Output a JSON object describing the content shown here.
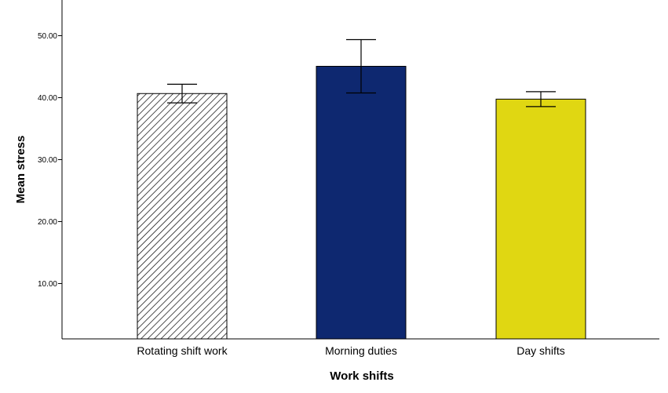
{
  "chart_data": {
    "type": "bar",
    "title": "",
    "xlabel": "Work shifts",
    "ylabel": "Mean stress",
    "categories": [
      "Rotating shift work",
      "Morning duties",
      "Day shifts"
    ],
    "values": [
      40.6,
      45.0,
      39.7
    ],
    "error_low": [
      39.1,
      40.7,
      38.5
    ],
    "error_high": [
      42.1,
      49.3,
      40.9
    ],
    "bar_styles": [
      "hatched",
      "solid",
      "solid"
    ],
    "colors": [
      "#ffffff",
      "#0e2870",
      "#e0d712"
    ],
    "ylim": [
      1,
      55
    ],
    "yticks": [
      10,
      20,
      30,
      40,
      50
    ],
    "ytick_labels": [
      "10.00",
      "20.00",
      "30.00",
      "40.00",
      "50.00"
    ],
    "grid": false,
    "legend": "none"
  }
}
